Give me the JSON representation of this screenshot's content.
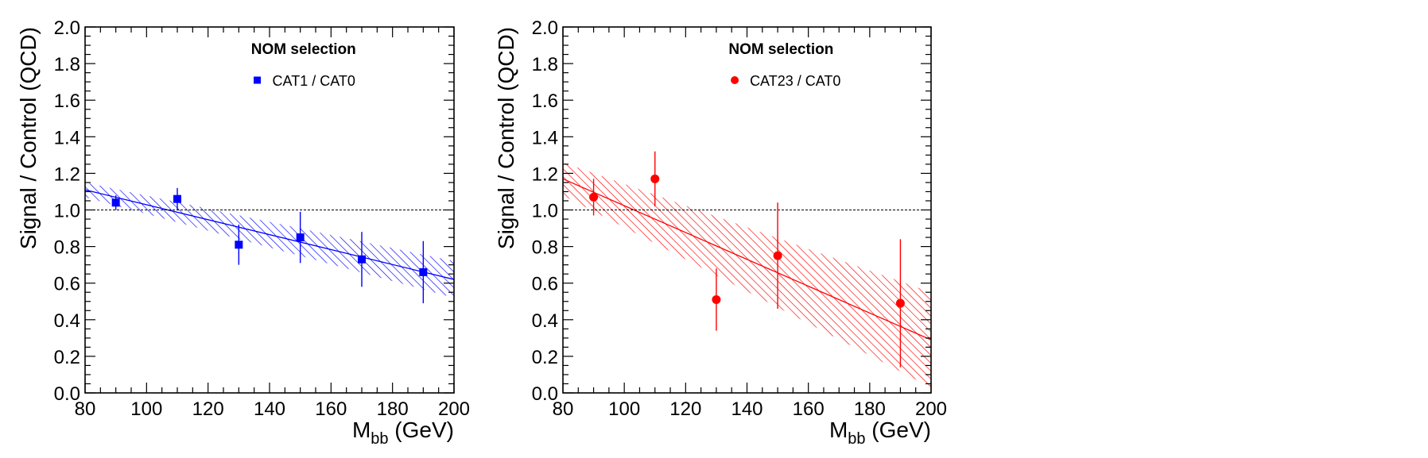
{
  "chart_data": [
    {
      "type": "scatter",
      "xlabel": "M",
      "xlabel_sub": "bb",
      "xlabel_unit": "(GeV)",
      "ylabel": "Signal / Control (QCD)",
      "xlim": [
        80,
        200
      ],
      "ylim": [
        0,
        2.0
      ],
      "xticks": [
        80,
        100,
        120,
        140,
        160,
        180,
        200
      ],
      "yticks": [
        0.0,
        0.2,
        0.4,
        0.6,
        0.8,
        1.0,
        1.2,
        1.4,
        1.6,
        1.8,
        2.0
      ],
      "reference_line_y": 1.0,
      "legend_title": "NOM selection",
      "legend_position": "top-right",
      "color": "#0000ff",
      "marker": "square",
      "series": [
        {
          "name": "CAT1 / CAT0",
          "x": [
            90,
            110,
            130,
            150,
            170,
            190
          ],
          "y": [
            1.04,
            1.06,
            0.81,
            0.85,
            0.73,
            0.66
          ],
          "yerr": [
            0.04,
            0.06,
            0.11,
            0.14,
            0.15,
            0.17
          ]
        }
      ],
      "fit": {
        "intercept_at_80": 1.11,
        "value_at_200": 0.62,
        "band_at_80": 0.04,
        "band_at_200": 0.1
      }
    },
    {
      "type": "scatter",
      "xlabel": "M",
      "xlabel_sub": "bb",
      "xlabel_unit": "(GeV)",
      "ylabel": "Signal / Control (QCD)",
      "xlim": [
        80,
        200
      ],
      "ylim": [
        0,
        2.0
      ],
      "xticks": [
        80,
        100,
        120,
        140,
        160,
        180,
        200
      ],
      "yticks": [
        0.0,
        0.2,
        0.4,
        0.6,
        0.8,
        1.0,
        1.2,
        1.4,
        1.6,
        1.8,
        2.0
      ],
      "reference_line_y": 1.0,
      "legend_title": "NOM selection",
      "legend_position": "top-right",
      "color": "#ff0000",
      "marker": "circle",
      "series": [
        {
          "name": "CAT23 / CAT0",
          "x": [
            90,
            110,
            130,
            150,
            190
          ],
          "y": [
            1.07,
            1.17,
            0.51,
            0.75,
            0.49
          ],
          "yerr": [
            0.1,
            0.15,
            0.17,
            0.29,
            0.35
          ]
        }
      ],
      "fit": {
        "intercept_at_80": 1.17,
        "value_at_200": 0.29,
        "band_at_80": 0.09,
        "band_at_200": 0.26
      }
    }
  ]
}
